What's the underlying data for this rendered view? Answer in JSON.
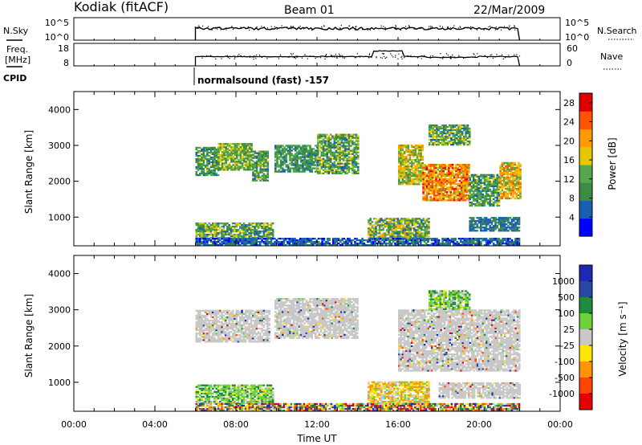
{
  "header": {
    "station": "Kodiak (fitACF)",
    "beam": "Beam 01",
    "date": "22/Mar/2009"
  },
  "noise_panel": {
    "left_label": "N.Sky",
    "right_label": "N.Search",
    "left_ticks": [
      "10^5",
      "10^0"
    ],
    "right_ticks": [
      "10^5",
      "10^0"
    ]
  },
  "freq_panel": {
    "left_label_lines": [
      "Freq.",
      "[MHz]"
    ],
    "right_label": "Nave",
    "left_ticks": [
      "18",
      "8"
    ],
    "right_ticks": [
      "60",
      "0"
    ]
  },
  "cpid": {
    "label": "CPID",
    "program": "normalsound (fast) -157"
  },
  "colors": {
    "power": [
      "#0000ff",
      "#1a5fb4",
      "#3c8c46",
      "#52a84a",
      "#e6c800",
      "#ff9b00",
      "#ff5500",
      "#e10000"
    ],
    "velocity": [
      "#1e28b4",
      "#2846a5",
      "#1e8c3c",
      "#6ed23c",
      "#c8c8c8",
      "#ffe600",
      "#ff9600",
      "#ff4600",
      "#e60000"
    ],
    "ground_scatter": "#c8c8c8"
  },
  "chart_data": [
    {
      "type": "heatmap",
      "title": "Power",
      "xlabel": "Time UT",
      "ylabel": "Slant Range [km]",
      "x_ticks": [
        "00:00",
        "04:00",
        "08:00",
        "12:00",
        "16:00",
        "20:00",
        "00:00"
      ],
      "xlim_hours": [
        0,
        24
      ],
      "ylim": [
        200,
        4500
      ],
      "y_ticks": [
        1000,
        2000,
        3000,
        4000
      ],
      "colorbar": {
        "label": "Power [dB]",
        "ticks": [
          "4",
          "8",
          "12",
          "16",
          "20",
          "24",
          "28"
        ],
        "range": [
          0,
          30
        ]
      },
      "regions": [
        {
          "t0": 6.0,
          "t1": 7.1,
          "r0": 2150,
          "r1": 2950,
          "min": 6,
          "max": 16
        },
        {
          "t0": 7.1,
          "t1": 8.8,
          "r0": 2300,
          "r1": 3050,
          "min": 8,
          "max": 18
        },
        {
          "t0": 8.8,
          "t1": 9.6,
          "r0": 2000,
          "r1": 2850,
          "min": 6,
          "max": 16
        },
        {
          "t0": 9.9,
          "t1": 12.0,
          "r0": 2250,
          "r1": 3000,
          "min": 6,
          "max": 14
        },
        {
          "t0": 12.0,
          "t1": 14.0,
          "r0": 2200,
          "r1": 3300,
          "min": 6,
          "max": 18
        },
        {
          "t0": 16.0,
          "t1": 17.2,
          "r0": 1900,
          "r1": 3000,
          "min": 10,
          "max": 22
        },
        {
          "t0": 17.2,
          "t1": 19.5,
          "r0": 1450,
          "r1": 2450,
          "min": 14,
          "max": 28
        },
        {
          "t0": 19.5,
          "t1": 21.0,
          "r0": 1300,
          "r1": 2200,
          "min": 6,
          "max": 16
        },
        {
          "t0": 21.0,
          "t1": 22.0,
          "r0": 1500,
          "r1": 2500,
          "min": 12,
          "max": 24
        },
        {
          "t0": 17.5,
          "t1": 19.5,
          "r0": 3000,
          "r1": 3550,
          "min": 6,
          "max": 18
        },
        {
          "t0": 6.0,
          "t1": 9.8,
          "r0": 400,
          "r1": 850,
          "min": 6,
          "max": 18
        },
        {
          "t0": 14.5,
          "t1": 17.5,
          "r0": 350,
          "r1": 950,
          "min": 6,
          "max": 20
        },
        {
          "t0": 19.5,
          "t1": 22.0,
          "r0": 600,
          "r1": 1000,
          "min": 4,
          "max": 10
        },
        {
          "t0": 6.0,
          "t1": 22.0,
          "r0": 200,
          "r1": 400,
          "min": 2,
          "max": 10
        }
      ]
    },
    {
      "type": "heatmap",
      "title": "Velocity",
      "xlabel": "Time UT",
      "ylabel": "Slant Range [km]",
      "x_ticks": [
        "00:00",
        "04:00",
        "08:00",
        "12:00",
        "16:00",
        "20:00",
        "00:00"
      ],
      "xlim_hours": [
        0,
        24
      ],
      "ylim": [
        200,
        4500
      ],
      "y_ticks": [
        1000,
        2000,
        3000,
        4000
      ],
      "colorbar": {
        "label": "Velocity [m s⁻¹]",
        "ticks": [
          "1000",
          "500",
          "100",
          "25",
          "-25",
          "-100",
          "-500",
          "-1000"
        ]
      },
      "regions": [
        {
          "t0": 6.0,
          "t1": 9.6,
          "r0": 2100,
          "r1": 3000,
          "mostly": "ground"
        },
        {
          "t0": 9.9,
          "t1": 14.0,
          "r0": 2200,
          "r1": 3300,
          "mostly": "ground"
        },
        {
          "t0": 16.0,
          "t1": 22.0,
          "r0": 1300,
          "r1": 3000,
          "mostly": "ground"
        },
        {
          "t0": 17.5,
          "t1": 19.5,
          "r0": 3000,
          "r1": 3500,
          "mostly": "green"
        },
        {
          "t0": 6.0,
          "t1": 9.8,
          "r0": 400,
          "r1": 900,
          "mostly": "green"
        },
        {
          "t0": 14.5,
          "t1": 17.5,
          "r0": 400,
          "r1": 1000,
          "mostly": "orange"
        },
        {
          "t0": 18.0,
          "t1": 22.0,
          "r0": 550,
          "r1": 1000,
          "mostly": "ground"
        },
        {
          "t0": 6.0,
          "t1": 22.0,
          "r0": 200,
          "r1": 400,
          "mostly": "mixed"
        }
      ]
    }
  ]
}
